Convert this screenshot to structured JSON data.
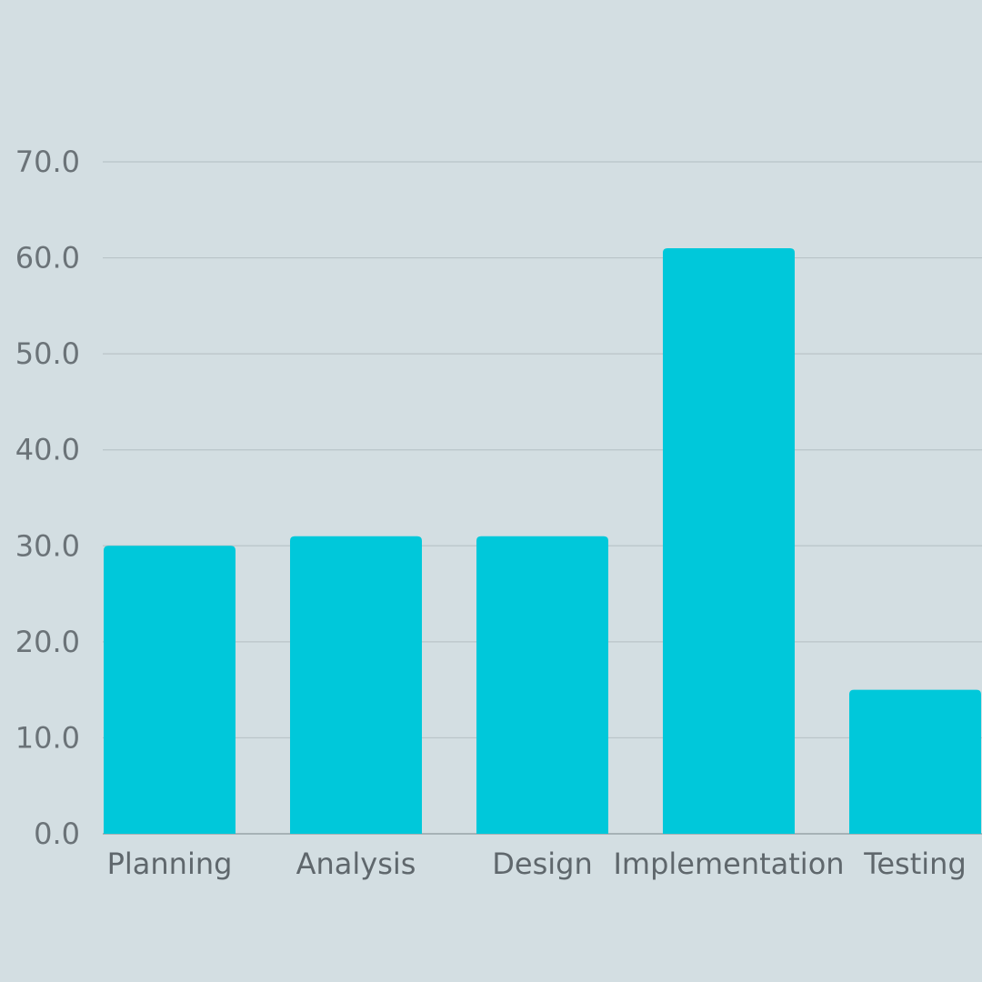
{
  "chart_data": {
    "type": "bar",
    "categories": [
      "Planning",
      "Analysis",
      "Design",
      "Implementation",
      "Testing"
    ],
    "values": [
      30,
      31,
      31,
      61,
      15
    ],
    "ylim": [
      0,
      70
    ],
    "yticks": [
      "0.0",
      "10.0",
      "20.0",
      "30.0",
      "40.0",
      "50.0",
      "60.0",
      "70.0"
    ],
    "title": "",
    "xlabel": "",
    "ylabel": "",
    "grid": true,
    "legend": "none",
    "colors": {
      "bar": "#00c8da",
      "background": "#d3dee2",
      "grid": "#b9c4c8",
      "text": "#6b7378"
    }
  }
}
